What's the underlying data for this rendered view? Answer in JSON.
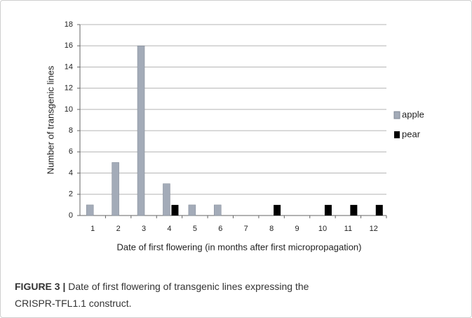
{
  "chart_data": {
    "type": "bar",
    "categories": [
      "1",
      "2",
      "3",
      "4",
      "5",
      "6",
      "7",
      "8",
      "9",
      "10",
      "11",
      "12"
    ],
    "series": [
      {
        "name": "apple",
        "color": "#a3abb8",
        "values": [
          1,
          5,
          16,
          3,
          1,
          1,
          0,
          0,
          0,
          0,
          0,
          0
        ]
      },
      {
        "name": "pear",
        "color": "#000000",
        "values": [
          0,
          0,
          0,
          1,
          0,
          0,
          0,
          1,
          0,
          1,
          1,
          1
        ]
      }
    ],
    "x_label": "Date of first flowering (in months after first micropropagation)",
    "y_label": "Number  of transgenic lines",
    "ylim": [
      0,
      18
    ],
    "yticks": [
      0,
      2,
      4,
      6,
      8,
      10,
      12,
      14,
      16,
      18
    ],
    "grid": true,
    "legend": "right"
  },
  "figure": {
    "label": "FIGURE 3 |",
    "text": "Date of first flowering of transgenic lines expressing the",
    "text2": "CRISPR-TFL1.1 construct."
  }
}
